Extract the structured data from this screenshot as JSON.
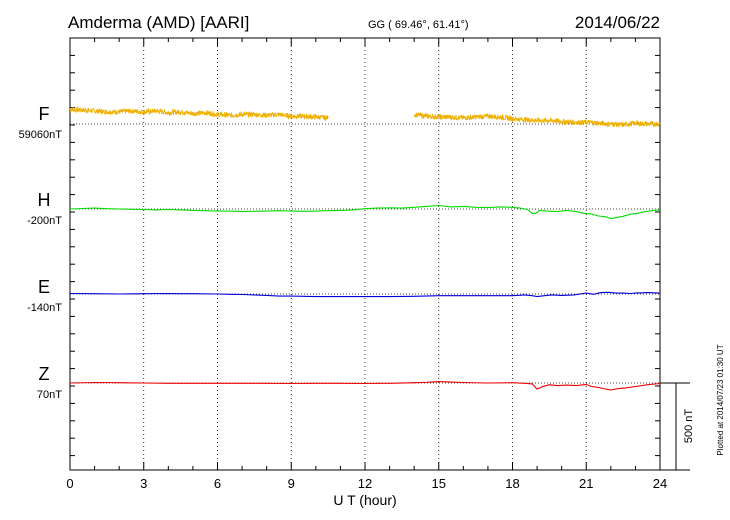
{
  "header": {
    "station": "Amderma (AMD)  [AARI]",
    "coords": "GG ( 69.46°,  61.41°)",
    "date": "2014/06/22"
  },
  "footer": {
    "plotted": "Plotted at 2014/07/23 01:30 UT",
    "scale_label": "500 nT"
  },
  "chart_data": {
    "type": "line",
    "xlabel": "U T (hour)",
    "xlim": [
      0,
      24
    ],
    "x_ticks": [
      0,
      3,
      6,
      9,
      12,
      15,
      18,
      21,
      24
    ],
    "scale_bar_nT": 500,
    "grid": true,
    "series": [
      {
        "name": "F",
        "baseline_label": "59060nT",
        "color": "#f0b000",
        "noisy": true,
        "x": [
          0,
          0.5,
          1,
          1.5,
          2,
          2.5,
          3,
          3.5,
          4,
          4.5,
          5,
          5.5,
          6,
          6.5,
          7,
          7.5,
          8,
          8.5,
          9,
          9.5,
          10,
          10.5,
          null,
          14,
          14.5,
          15,
          15.5,
          16,
          16.5,
          17,
          17.5,
          18,
          18.5,
          19,
          19.5,
          20,
          20.5,
          21,
          21.5,
          22,
          22.5,
          23,
          23.5,
          24
        ],
        "y": [
          85,
          80,
          75,
          70,
          70,
          75,
          70,
          75,
          65,
          70,
          60,
          65,
          55,
          50,
          55,
          55,
          50,
          55,
          45,
          45,
          40,
          35,
          null,
          55,
          45,
          40,
          40,
          35,
          40,
          45,
          40,
          30,
          25,
          20,
          20,
          15,
          10,
          10,
          5,
          0,
          -5,
          5,
          0,
          0
        ]
      },
      {
        "name": "H",
        "baseline_label": "-200nT",
        "color": "#00dd00",
        "x": [
          0,
          0.5,
          1,
          1.5,
          2,
          2.5,
          3,
          3.5,
          4,
          4.5,
          5,
          5.5,
          6,
          6.5,
          7,
          7.5,
          8,
          8.5,
          9,
          9.5,
          10,
          10.5,
          11,
          11.5,
          12,
          12.5,
          13,
          13.5,
          14,
          14.5,
          15,
          15.5,
          16,
          16.5,
          17,
          17.5,
          18,
          18.3,
          18.6,
          18.8,
          18.95,
          19.1,
          19.4,
          19.8,
          20.2,
          20.6,
          20.9,
          21.2,
          21.5,
          21.8,
          22.0,
          22.2,
          22.5,
          22.8,
          23.1,
          23.4,
          23.7,
          24
        ],
        "y": [
          0,
          3,
          5,
          2,
          0,
          -2,
          -3,
          -5,
          -3,
          -5,
          -8,
          -10,
          -12,
          -12,
          -15,
          -13,
          -12,
          -10,
          -12,
          -13,
          -12,
          -10,
          -8,
          -5,
          2,
          5,
          7,
          5,
          10,
          15,
          20,
          12,
          15,
          10,
          8,
          12,
          10,
          5,
          -3,
          -25,
          -25,
          -8,
          -12,
          -15,
          -8,
          -15,
          -25,
          -28,
          -40,
          -45,
          -55,
          -50,
          -42,
          -30,
          -25,
          -15,
          -10,
          -5
        ]
      },
      {
        "name": "E",
        "baseline_label": "-140nT",
        "color": "#0000dd",
        "x": [
          0,
          1,
          2,
          3,
          4,
          4.5,
          5,
          6,
          6.5,
          7,
          8,
          8.5,
          9,
          10,
          11,
          12,
          13,
          14,
          15,
          16,
          17,
          18,
          18.5,
          18.8,
          19,
          19.3,
          19.6,
          20,
          20.5,
          21,
          21.3,
          21.6,
          21.9,
          22.2,
          22.5,
          22.8,
          23,
          23.5,
          24
        ],
        "y": [
          3,
          2,
          0,
          2,
          3,
          2,
          2,
          0,
          -2,
          -3,
          -8,
          -12,
          -12,
          -15,
          -15,
          -15,
          -15,
          -13,
          -10,
          -10,
          -10,
          -10,
          -5,
          -10,
          -15,
          -10,
          -5,
          -8,
          -5,
          5,
          -2,
          8,
          10,
          5,
          5,
          3,
          5,
          8,
          5
        ]
      },
      {
        "name": "Z",
        "baseline_label": "70nT",
        "color": "#ee0000",
        "x": [
          0,
          1,
          2,
          3,
          4,
          5,
          6,
          7,
          8,
          9,
          10,
          11,
          12,
          13,
          14,
          14.5,
          15,
          15.5,
          16,
          17,
          18,
          18.5,
          18.8,
          19.0,
          19.2,
          19.5,
          19.8,
          20.2,
          20.6,
          21,
          21.2,
          21.5,
          21.8,
          22.0,
          22.3,
          22.6,
          23,
          23.5,
          24
        ],
        "y": [
          0,
          3,
          2,
          0,
          -2,
          -2,
          -2,
          -2,
          -2,
          -3,
          -2,
          -2,
          -3,
          -2,
          2,
          4,
          8,
          5,
          3,
          0,
          2,
          -2,
          -5,
          -35,
          -22,
          -10,
          -15,
          -12,
          -15,
          -8,
          -20,
          -25,
          -35,
          -40,
          -32,
          -28,
          -20,
          -10,
          -3
        ]
      }
    ]
  }
}
